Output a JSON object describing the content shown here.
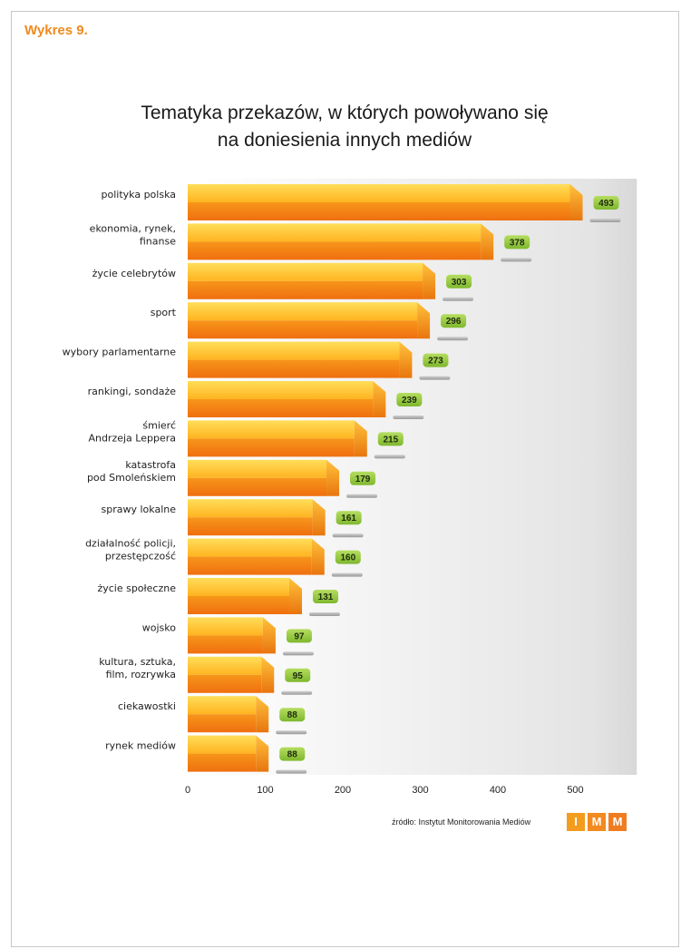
{
  "header": {
    "label": "Wykres 9."
  },
  "title_lines": [
    "Tematyka przekazów, w których powoływano się",
    "na doniesienia innych mediów"
  ],
  "source": "źródło: Instytut Monitorowania Mediów",
  "logo_letters": [
    "I",
    "M",
    "M"
  ],
  "colors": {
    "accent": "#f08a1e",
    "bar_top": "#ffd24a",
    "bar_bottom": "#f07a10",
    "value_badge": "#8cc63f"
  },
  "chart_data": {
    "type": "bar",
    "orientation": "horizontal",
    "categories": [
      [
        "polityka polska"
      ],
      [
        "ekonomia, rynek,",
        "finanse"
      ],
      [
        "życie celebrytów"
      ],
      [
        "sport"
      ],
      [
        "wybory parlamentarne"
      ],
      [
        "rankingi, sondaże"
      ],
      [
        "śmierć",
        "Andrzeja Leppera"
      ],
      [
        "katastrofa",
        "pod Smoleńskiem"
      ],
      [
        "sprawy lokalne"
      ],
      [
        "działalność policji,",
        "przestępczość"
      ],
      [
        "życie społeczne"
      ],
      [
        "wojsko"
      ],
      [
        "kultura, sztuka,",
        "film, rozrywka"
      ],
      [
        "ciekawostki"
      ],
      [
        "rynek mediów"
      ]
    ],
    "values": [
      493,
      378,
      303,
      296,
      273,
      239,
      215,
      179,
      161,
      160,
      131,
      97,
      95,
      88,
      88
    ],
    "xticks": [
      0,
      100,
      200,
      300,
      400,
      500
    ],
    "xlim": [
      0,
      550
    ],
    "grid": false
  }
}
